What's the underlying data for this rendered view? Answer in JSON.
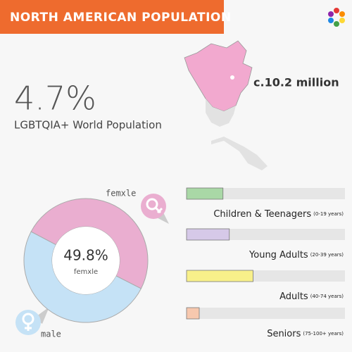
{
  "header": {
    "title": "NORTH AMERICAN POPULATION"
  },
  "stat": {
    "value": "4.7%",
    "label": "LGBTQIA+ World Population"
  },
  "map": {
    "label": "c.10.2 million"
  },
  "chart_data": [
    {
      "type": "pie",
      "categories": [
        "femxle",
        "male"
      ],
      "values": [
        49.8,
        50.2
      ],
      "colors": [
        "#eaaed0",
        "#c5e2f6"
      ],
      "value_labels": [
        "49.8%",
        null
      ]
    },
    {
      "type": "bar",
      "categories": [
        "Children & Teenagers",
        "Young Adults",
        "Adults",
        "Seniors"
      ],
      "sublabels": [
        "(0-19 years)",
        "(20-39 years)",
        "(40-74 years)",
        "(75-100+ years)"
      ],
      "values": [
        23,
        27,
        42,
        8
      ],
      "colors": [
        "#a9d8a6",
        "#d6c9e8",
        "#f8f08a",
        "#f7c8ae"
      ],
      "xlim": [
        0,
        100
      ]
    }
  ]
}
